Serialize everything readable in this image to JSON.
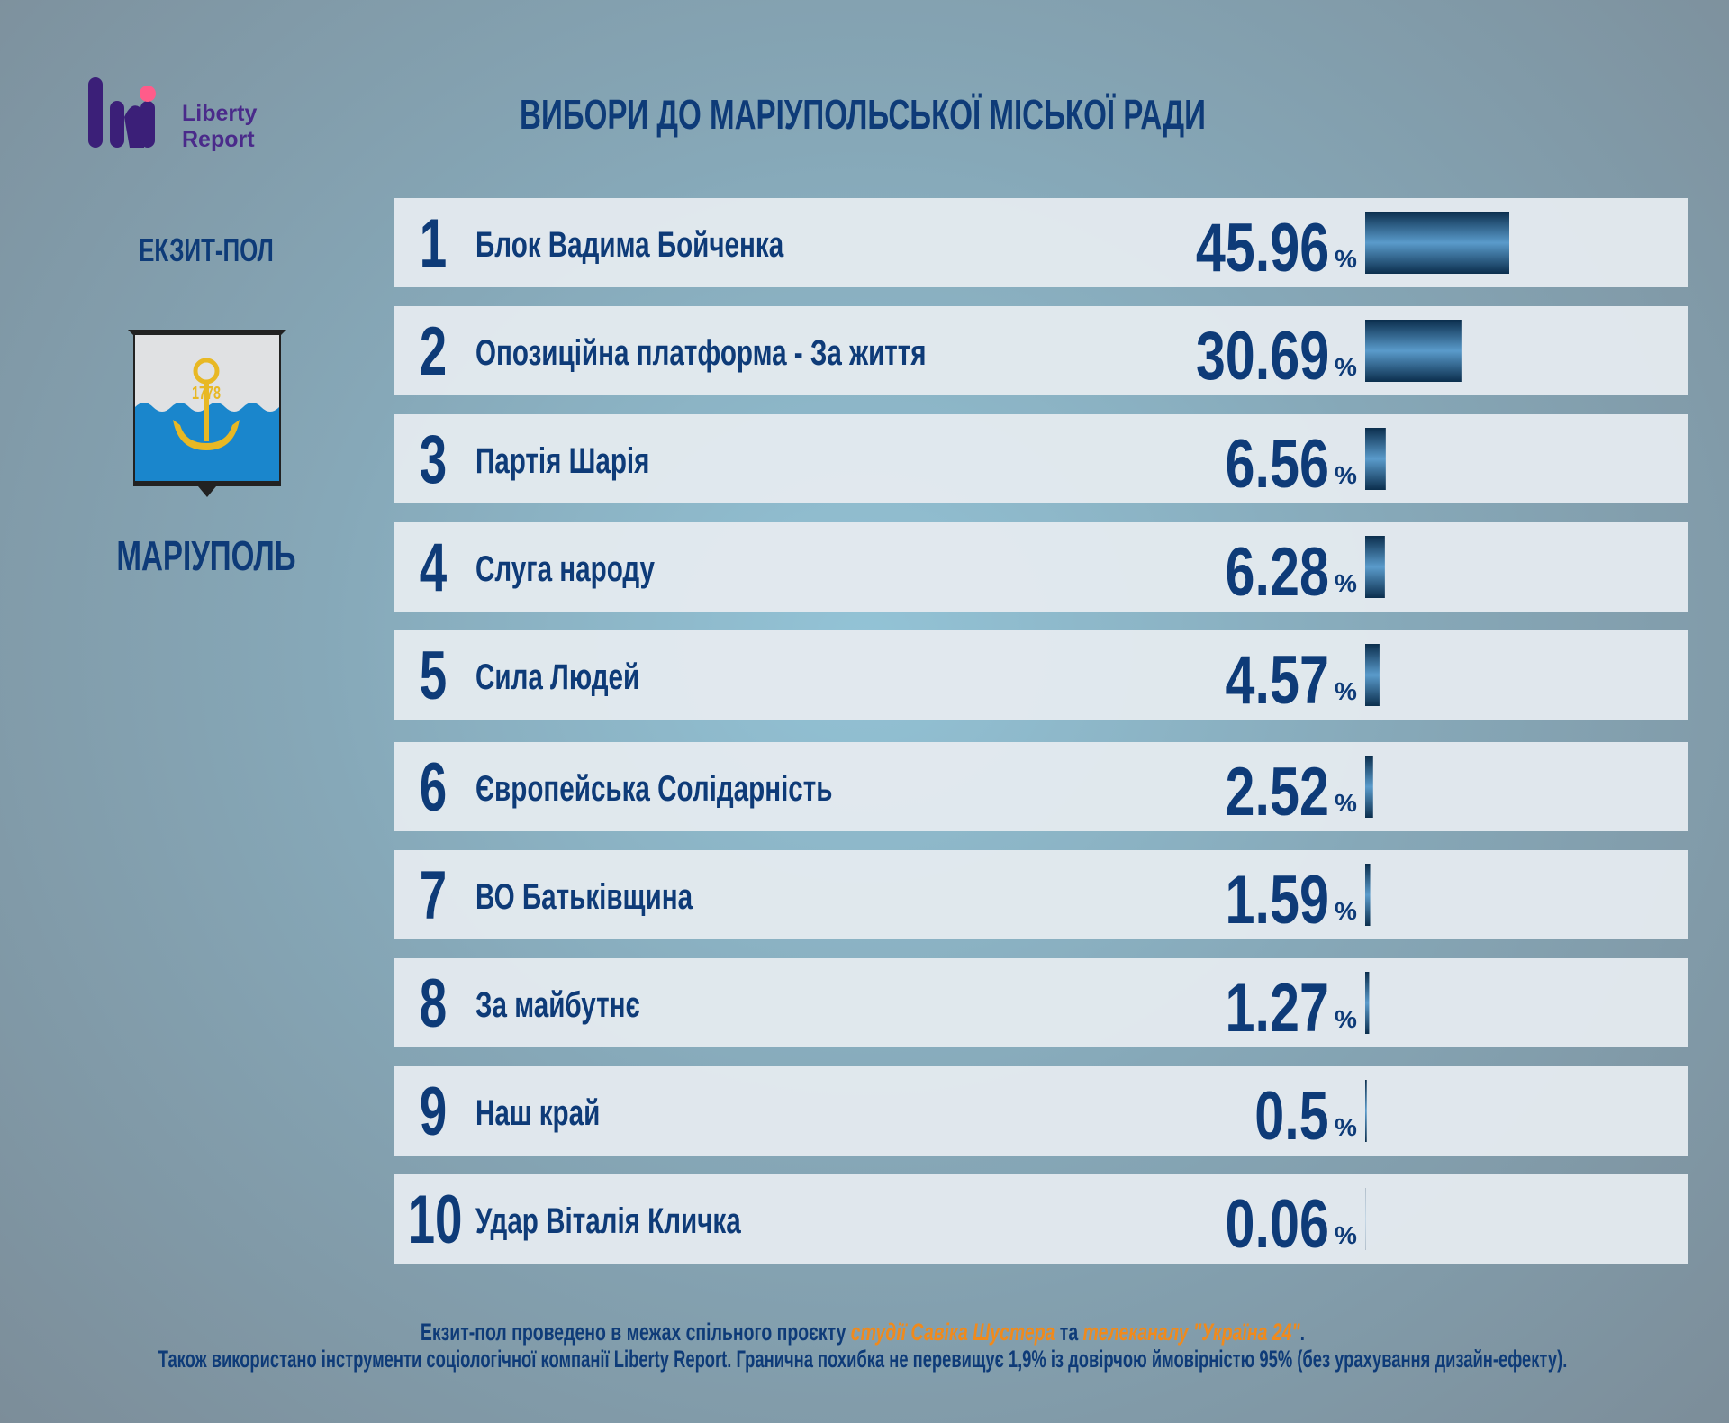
{
  "logo": {
    "line1": "Liberty",
    "line2": "Report"
  },
  "poll_type": "ЕКЗИТ-ПОЛ",
  "city": "МАРІУПОЛЬ",
  "emblem_year": "1778",
  "footer": {
    "line1": [
      {
        "text": "Екзит-пол проведено в межах спільного проєкту ",
        "highlight": false
      },
      {
        "text": "студії Савіка Шустера",
        "highlight": true
      },
      {
        "text": " та ",
        "highlight": false
      },
      {
        "text": "телеканалу \"Україна 24\"",
        "highlight": true
      },
      {
        "text": ".",
        "highlight": false
      }
    ],
    "line2": "Також використано інструменти соціологічної компанії Liberty Report. Гранична похибка не перевищує 1,9% із довірчою ймовірністю 95% (без урахування дизайн-ефекту)."
  },
  "chart_data": {
    "type": "bar",
    "orientation": "horizontal",
    "title": "ВИБОРИ ДО МАРІУПОЛЬСЬКОЇ МІСЬКОЇ РАДИ",
    "ranks": [
      1,
      2,
      3,
      4,
      5,
      6,
      7,
      8,
      9,
      10
    ],
    "categories": [
      "Блок Вадима Бойченка",
      "Опозиційна платформа - За життя",
      "Партія Шарія",
      "Слуга народу",
      "Сила Людей",
      "Європейська Солідарність",
      "ВО Батьківщина",
      "За майбутнє",
      "Наш край",
      "Удар Віталія Кличка"
    ],
    "values": [
      45.96,
      30.69,
      6.56,
      6.28,
      4.57,
      2.52,
      1.59,
      1.27,
      0.5,
      0.06
    ],
    "unit": "%",
    "color": "#5a9bcb"
  }
}
